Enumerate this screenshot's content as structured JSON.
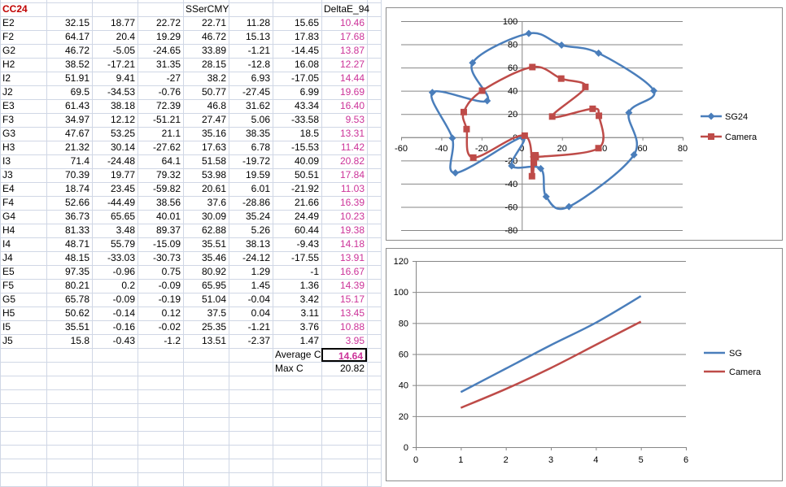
{
  "sheet": {
    "title": "CC24",
    "header_mid": "SSerCMY",
    "header_de": "DeltaE_94",
    "rows": [
      {
        "id": "E2",
        "v": [
          "32.15",
          "18.77",
          "22.72",
          "22.71",
          "11.28",
          "15.65"
        ],
        "de": "10.46"
      },
      {
        "id": "F2",
        "v": [
          "64.17",
          "20.4",
          "19.29",
          "46.72",
          "15.13",
          "17.83"
        ],
        "de": "17.68"
      },
      {
        "id": "G2",
        "v": [
          "46.72",
          "-5.05",
          "-24.65",
          "33.89",
          "-1.21",
          "-14.45"
        ],
        "de": "13.87"
      },
      {
        "id": "H2",
        "v": [
          "38.52",
          "-17.21",
          "31.35",
          "28.15",
          "-12.8",
          "16.08"
        ],
        "de": "12.27"
      },
      {
        "id": "I2",
        "v": [
          "51.91",
          "9.41",
          "-27",
          "38.2",
          "6.93",
          "-17.05"
        ],
        "de": "14.44"
      },
      {
        "id": "J2",
        "v": [
          "69.5",
          "-34.53",
          "-0.76",
          "50.77",
          "-27.45",
          "6.99"
        ],
        "de": "19.69"
      },
      {
        "id": "E3",
        "v": [
          "61.43",
          "38.18",
          "72.39",
          "46.8",
          "31.62",
          "43.34"
        ],
        "de": "16.40"
      },
      {
        "id": "F3",
        "v": [
          "34.97",
          "12.12",
          "-51.21",
          "27.47",
          "5.06",
          "-33.58"
        ],
        "de": "9.53"
      },
      {
        "id": "G3",
        "v": [
          "47.67",
          "53.25",
          "21.1",
          "35.16",
          "38.35",
          "18.5"
        ],
        "de": "13.31"
      },
      {
        "id": "H3",
        "v": [
          "21.32",
          "30.14",
          "-27.62",
          "17.63",
          "6.78",
          "-15.53"
        ],
        "de": "11.42"
      },
      {
        "id": "I3",
        "v": [
          "71.4",
          "-24.48",
          "64.1",
          "51.58",
          "-19.72",
          "40.09"
        ],
        "de": "20.82"
      },
      {
        "id": "J3",
        "v": [
          "70.39",
          "19.77",
          "79.32",
          "53.98",
          "19.59",
          "50.51"
        ],
        "de": "17.84"
      },
      {
        "id": "E4",
        "v": [
          "18.74",
          "23.45",
          "-59.82",
          "20.61",
          "6.01",
          "-21.92"
        ],
        "de": "11.03"
      },
      {
        "id": "F4",
        "v": [
          "52.66",
          "-44.49",
          "38.56",
          "37.6",
          "-28.86",
          "21.66"
        ],
        "de": "16.39"
      },
      {
        "id": "G4",
        "v": [
          "36.73",
          "65.65",
          "40.01",
          "30.09",
          "35.24",
          "24.49"
        ],
        "de": "10.23"
      },
      {
        "id": "H4",
        "v": [
          "81.33",
          "3.48",
          "89.37",
          "62.88",
          "5.26",
          "60.44"
        ],
        "de": "19.38"
      },
      {
        "id": "I4",
        "v": [
          "48.71",
          "55.79",
          "-15.09",
          "35.51",
          "38.13",
          "-9.43"
        ],
        "de": "14.18"
      },
      {
        "id": "J4",
        "v": [
          "48.15",
          "-33.03",
          "-30.73",
          "35.46",
          "-24.12",
          "-17.55"
        ],
        "de": "13.91"
      },
      {
        "id": "E5",
        "v": [
          "97.35",
          "-0.96",
          "0.75",
          "80.92",
          "1.29",
          "-1"
        ],
        "de": "16.67"
      },
      {
        "id": "F5",
        "v": [
          "80.21",
          "0.2",
          "-0.09",
          "65.95",
          "1.45",
          "1.36"
        ],
        "de": "14.39"
      },
      {
        "id": "G5",
        "v": [
          "65.78",
          "-0.09",
          "-0.19",
          "51.04",
          "-0.04",
          "3.42"
        ],
        "de": "15.17"
      },
      {
        "id": "H5",
        "v": [
          "50.62",
          "-0.14",
          "0.12",
          "37.5",
          "0.04",
          "3.11"
        ],
        "de": "13.45"
      },
      {
        "id": "I5",
        "v": [
          "35.51",
          "-0.16",
          "-0.02",
          "25.35",
          "-1.21",
          "3.76"
        ],
        "de": "10.88"
      },
      {
        "id": "J5",
        "v": [
          "15.8",
          "-0.43",
          "-1.2",
          "13.51",
          "-2.37",
          "1.47"
        ],
        "de": "3.95"
      }
    ],
    "avg_label": "Average C",
    "avg_value": "14.64",
    "max_label": "Max C",
    "max_value": "20.82"
  },
  "colors": {
    "blue": "#4a7ebb",
    "red": "#be4b48",
    "pink": "#cc3399",
    "header_red": "#c00000",
    "grid": "#d0d7e5"
  },
  "chart_data": [
    {
      "type": "scatter",
      "xlim": [
        -60,
        80
      ],
      "ylim": [
        -80,
        100
      ],
      "xticks": [
        -60,
        -40,
        -20,
        0,
        20,
        40,
        60,
        80
      ],
      "yticks": [
        -80,
        -60,
        -40,
        -20,
        0,
        20,
        40,
        60,
        80,
        100
      ],
      "grid": true,
      "legend_position": "right",
      "series": [
        {
          "name": "SG24",
          "color": "#4a7ebb",
          "marker": "diamond",
          "x": [
            -44.49,
            -34.53,
            -33.03,
            -24.48,
            -17.21,
            -5.05,
            0.2,
            3.48,
            9.41,
            12.12,
            19.77,
            23.45,
            38.18,
            53.25,
            55.79,
            65.65
          ],
          "y": [
            38.56,
            -0.76,
            -30.73,
            64.1,
            31.35,
            -24.65,
            -0.09,
            89.37,
            -27,
            -51.21,
            79.32,
            -59.82,
            72.39,
            21.1,
            -15.09,
            40.01
          ]
        },
        {
          "name": "Camera",
          "color": "#be4b48",
          "marker": "square",
          "x": [
            -28.86,
            -27.45,
            -24.12,
            -19.72,
            1.45,
            5.06,
            5.26,
            6.01,
            6.78,
            6.93,
            15.13,
            19.59,
            31.62,
            35.24,
            38.13,
            38.35
          ],
          "y": [
            21.66,
            6.99,
            -17.55,
            40.09,
            1.36,
            -33.58,
            60.44,
            -21.92,
            -15.53,
            -17.05,
            17.83,
            50.51,
            43.34,
            24.49,
            -9.43,
            18.5
          ]
        }
      ]
    },
    {
      "type": "line",
      "xlim": [
        0,
        6
      ],
      "ylim": [
        0,
        120
      ],
      "xticks": [
        0,
        1,
        2,
        3,
        4,
        5,
        6
      ],
      "yticks": [
        0,
        20,
        40,
        60,
        80,
        100,
        120
      ],
      "grid": true,
      "legend_position": "right",
      "x": [
        1,
        2,
        3,
        4,
        5
      ],
      "series": [
        {
          "name": "SG",
          "color": "#4a7ebb",
          "values": [
            35.51,
            50.62,
            65.78,
            80.21,
            97.35
          ]
        },
        {
          "name": "Camera",
          "color": "#be4b48",
          "values": [
            25.35,
            37.5,
            51.04,
            65.95,
            80.92
          ]
        }
      ]
    }
  ]
}
